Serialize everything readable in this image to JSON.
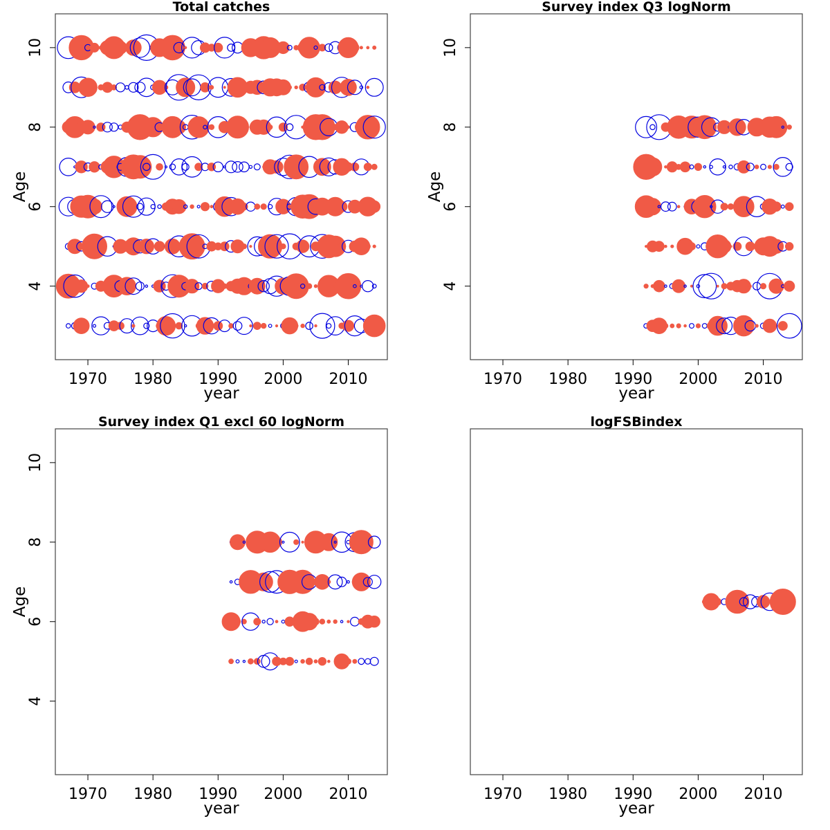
{
  "colors": {
    "positive": "#F05A46",
    "negative": "#0000E0",
    "frame": "#444444"
  },
  "chart_data": [
    {
      "type": "scatter",
      "title": "Total catches",
      "xlabel": "year",
      "ylabel": "Age",
      "xlim": [
        1965,
        2016
      ],
      "ylim": [
        2.15,
        10.85
      ],
      "xticks": [
        1970,
        1980,
        1990,
        2000,
        2010
      ],
      "yticks": [
        4,
        6,
        8,
        10
      ],
      "ages": [
        3,
        4,
        5,
        6,
        7,
        8,
        9,
        10
      ],
      "years": [
        1967,
        2014
      ],
      "seed": 11,
      "encoding": "bubble size ~ |residual|; filled red = positive, open blue = negative"
    },
    {
      "type": "scatter",
      "title": "Survey index Q3 logNorm",
      "xlabel": "year",
      "ylabel": "Age",
      "xlim": [
        1965,
        2016
      ],
      "ylim": [
        2.15,
        10.85
      ],
      "xticks": [
        1970,
        1980,
        1990,
        2000,
        2010
      ],
      "yticks": [
        4,
        6,
        8,
        10
      ],
      "ages": [
        3,
        4,
        5,
        6,
        7,
        8
      ],
      "years": [
        1992,
        2014
      ],
      "seed": 23,
      "encoding": "bubble size ~ |residual|; filled red = positive, open blue = negative"
    },
    {
      "type": "scatter",
      "title": "Survey index Q1 excl 60 logNorm",
      "xlabel": "year",
      "ylabel": "Age",
      "xlim": [
        1965,
        2016
      ],
      "ylim": [
        2.15,
        10.85
      ],
      "xticks": [
        1970,
        1980,
        1990,
        2000,
        2010
      ],
      "yticks": [
        4,
        6,
        8,
        10
      ],
      "ages": [
        5,
        6,
        7,
        8
      ],
      "years": [
        1992,
        2014
      ],
      "seed": 37,
      "encoding": "bubble size ~ |residual|; filled red = positive, open blue = negative"
    },
    {
      "type": "scatter",
      "title": "logFSBindex",
      "xlabel": "year",
      "ylabel": "",
      "xlim": [
        1965,
        2016
      ],
      "ylim": [
        2.15,
        10.85
      ],
      "xticks": [
        1970,
        1980,
        1990,
        2000,
        2010
      ],
      "yticks": [],
      "ages": [
        6.5
      ],
      "years": [
        2001,
        2014
      ],
      "seed": 51,
      "encoding": "bubble size ~ |residual|; filled red = positive, open blue = negative"
    }
  ]
}
